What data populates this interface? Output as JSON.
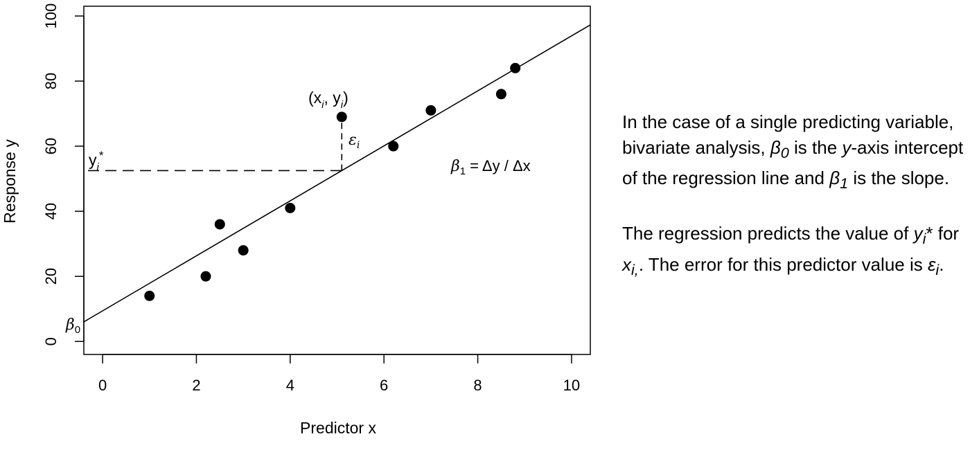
{
  "chart_data": {
    "type": "scatter",
    "xlabel": "Predictor x",
    "ylabel": "Response y",
    "xlim": [
      -0.4,
      10.4
    ],
    "ylim": [
      -4,
      103
    ],
    "xticks": [
      0,
      2,
      4,
      6,
      8,
      10
    ],
    "yticks": [
      0,
      20,
      40,
      60,
      80,
      100
    ],
    "grid": false,
    "points": [
      {
        "x": 1.0,
        "y": 14
      },
      {
        "x": 2.2,
        "y": 20
      },
      {
        "x": 2.5,
        "y": 36
      },
      {
        "x": 3.0,
        "y": 28
      },
      {
        "x": 4.0,
        "y": 41
      },
      {
        "x": 5.1,
        "y": 69
      },
      {
        "x": 6.2,
        "y": 60
      },
      {
        "x": 7.0,
        "y": 71
      },
      {
        "x": 8.5,
        "y": 76
      },
      {
        "x": 8.8,
        "y": 84
      }
    ],
    "regression_line": {
      "intercept": 9.4,
      "slope": 8.45
    },
    "highlight": {
      "x": 5.1,
      "y": 69,
      "y_pred": 52.5
    },
    "annotations": {
      "point_label_open": "(x",
      "point_label_sub1": "i",
      "point_label_comma": ", y",
      "point_label_sub2": "i",
      "point_label_close": ")",
      "error_symbol": "ε",
      "error_sub": "i",
      "pred_label": "y",
      "pred_sub": "i",
      "pred_star": "*",
      "slope_beta": "β",
      "slope_sub": "1",
      "slope_rest": " = Δy / Δx",
      "intercept_beta": "β",
      "intercept_sub": "0"
    }
  },
  "explanation": {
    "p1_a": "In the case of a single predicting variable, bivariate analysis, ",
    "p1_beta0": "β",
    "p1_beta0_sub": "0",
    "p1_b": " is the ",
    "p1_y": "y",
    "p1_c": "-axis intercept of the regression line and ",
    "p1_beta1": "β",
    "p1_beta1_sub": "1",
    "p1_d": " is the slope.",
    "p2_a": "The regression predicts the value of ",
    "p2_y": "y",
    "p2_y_sub": "i",
    "p2_star": "*",
    "p2_b": " for ",
    "p2_x": "x",
    "p2_x_sub": "i,",
    "p2_c": ". The error for this predictor value is ",
    "p2_eps": "ε",
    "p2_eps_sub": "i",
    "p2_d": "."
  }
}
